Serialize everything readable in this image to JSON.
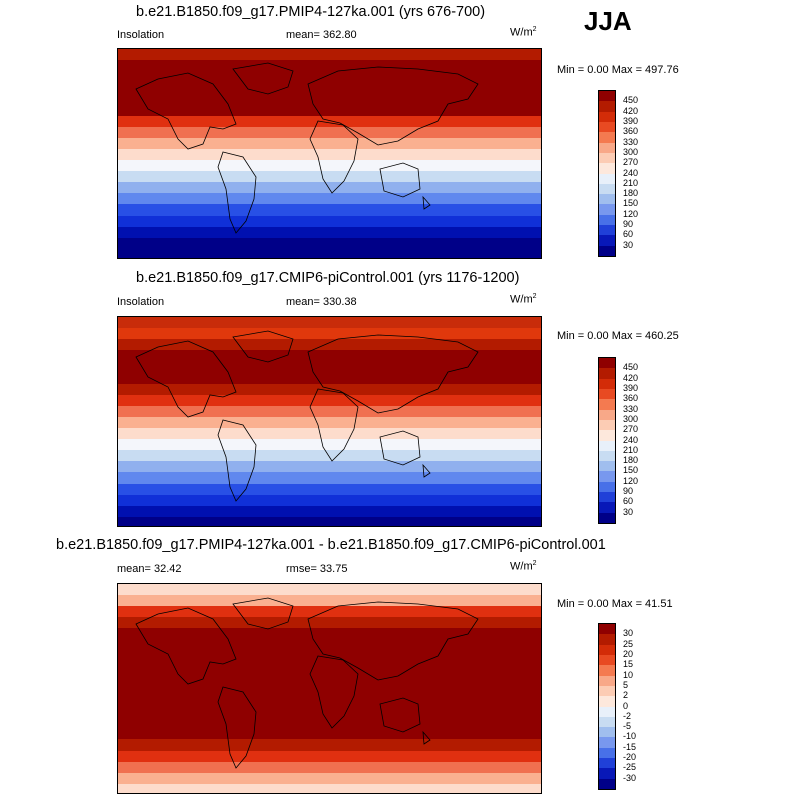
{
  "season": "JJA",
  "panels": [
    {
      "title": "b.e21.B1850.f09_g17.PMIP4-127ka.001 (yrs 676-700)",
      "left_label": "Insolation",
      "center_label": "mean= 362.80",
      "units": "W/m",
      "units_sup": "2",
      "minmax": "Min =   0.00 Max = 497.76",
      "colorbar_labels": [
        "450",
        "420",
        "390",
        "360",
        "330",
        "300",
        "270",
        "240",
        "210",
        "180",
        "150",
        "120",
        "90",
        "60",
        "30"
      ],
      "bands": [
        "#b31b00",
        "#8f0000",
        "#8f0000",
        "#8f0000",
        "#8f0000",
        "#8f0000",
        "#e03010",
        "#f07050",
        "#fab090",
        "#fddccc",
        "#f4f6fb",
        "#c8dcf2",
        "#90b0ee",
        "#6088ee",
        "#2850e6",
        "#1030d8",
        "#0010b0",
        "#000088",
        "#000088"
      ]
    },
    {
      "title": "b.e21.B1850.f09_g17.CMIP6-piControl.001 (yrs 1176-1200)",
      "left_label": "Insolation",
      "center_label": "mean= 330.38",
      "units": "W/m",
      "units_sup": "2",
      "minmax": "Min =   0.00 Max = 460.25",
      "colorbar_labels": [
        "450",
        "420",
        "390",
        "360",
        "330",
        "300",
        "270",
        "240",
        "210",
        "180",
        "150",
        "120",
        "90",
        "60",
        "30"
      ],
      "bands": [
        "#c82c0a",
        "#e0380c",
        "#b31b00",
        "#8f0000",
        "#8f0000",
        "#8f0000",
        "#b31b00",
        "#e03010",
        "#f07050",
        "#fab090",
        "#fddccc",
        "#f4f6fb",
        "#c8dcf2",
        "#90b0ee",
        "#6088ee",
        "#2850e6",
        "#1030d8",
        "#0010b0",
        "#000088"
      ]
    },
    {
      "title": "b.e21.B1850.f09_g17.PMIP4-127ka.001 - b.e21.B1850.f09_g17.CMIP6-piControl.001",
      "left_label": "mean=  32.42",
      "center_label": "rmse=  33.75",
      "units": "W/m",
      "units_sup": "2",
      "minmax": "Min =   0.00 Max =  41.51",
      "colorbar_labels": [
        "30",
        "25",
        "20",
        "15",
        "10",
        "5",
        "2",
        "0",
        "-2",
        "-5",
        "-10",
        "-15",
        "-20",
        "-25",
        "-30"
      ],
      "bands": [
        "#fddccc",
        "#fab090",
        "#e03010",
        "#b31b00",
        "#8f0000",
        "#8f0000",
        "#8f0000",
        "#8f0000",
        "#8f0000",
        "#8f0000",
        "#8f0000",
        "#8f0000",
        "#8f0000",
        "#8f0000",
        "#b31b00",
        "#e03010",
        "#f07050",
        "#fab090",
        "#fddccc"
      ]
    }
  ],
  "colorbar_colors": [
    "#8f0000",
    "#b31b00",
    "#d32c08",
    "#e84a22",
    "#f47a50",
    "#f8a888",
    "#fcccb4",
    "#fde8dc",
    "#e8f0fa",
    "#c8dcf2",
    "#a0beee",
    "#7898ee",
    "#4870e8",
    "#2040d8",
    "#0818b8",
    "#000088"
  ]
}
